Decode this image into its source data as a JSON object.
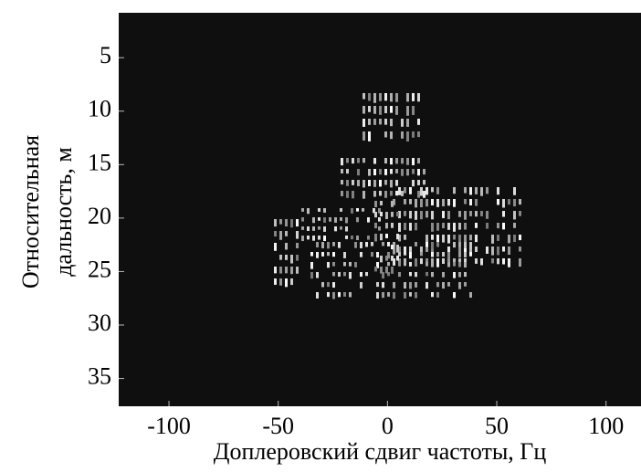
{
  "chart_data": {
    "type": "image",
    "xlabel": "Доплеровский сдвиг частоты, Гц",
    "ylabel": [
      "Относительная",
      "дальность, м"
    ],
    "xlim": [
      -123,
      116
    ],
    "xticks": [
      -100,
      -50,
      0,
      50,
      100
    ],
    "ylim": [
      0.8,
      37.6
    ],
    "yticks": [
      5,
      10,
      15,
      20,
      25,
      30,
      35
    ],
    "y_reversed": true
  }
}
